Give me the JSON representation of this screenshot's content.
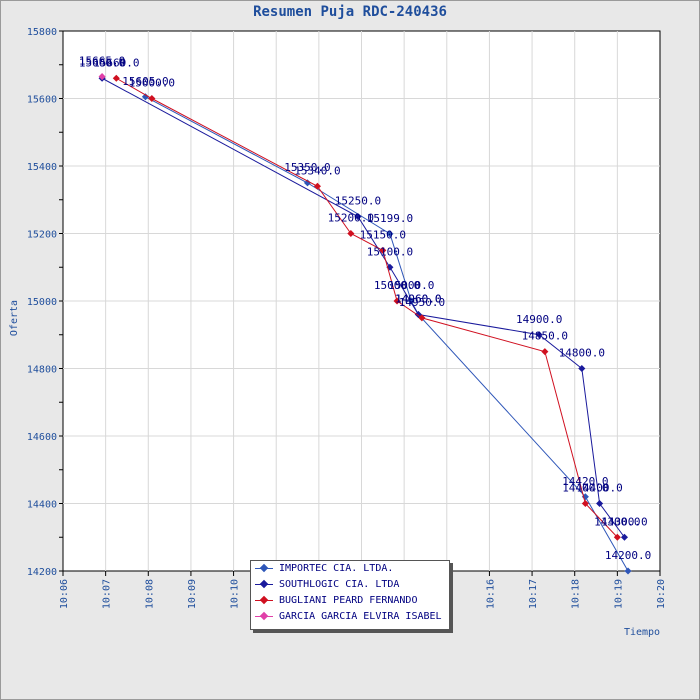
{
  "chart_data": {
    "type": "line",
    "title": "Resumen Puja RDC-240436",
    "xlabel": "Tiempo",
    "ylabel": "Oferta",
    "x_ticks": [
      "10:06",
      "10:07",
      "10:08",
      "10:09",
      "10:10",
      "10:11",
      "10:12",
      "10:13",
      "10:14",
      "10:15",
      "10:16",
      "10:17",
      "10:18",
      "10:19",
      "10:20"
    ],
    "xlim": [
      "10:06",
      "10:20"
    ],
    "ylim": [
      14200,
      15800
    ],
    "y_ticks": [
      14200,
      14400,
      14600,
      14800,
      15000,
      15200,
      15400,
      15600,
      15800
    ],
    "grid": true,
    "legend_position": "bottom-center",
    "series": [
      {
        "name": "IMPORTEC CIA. LTDA.",
        "color": "#2e56b8",
        "points": [
          {
            "x": "10:07:56",
            "y": 15605,
            "label": "15605.0"
          },
          {
            "x": "10:11:44",
            "y": 15350,
            "label": "15350.0"
          },
          {
            "x": "10:13:40",
            "y": 15199,
            "label": "15199.0"
          },
          {
            "x": "10:14:10",
            "y": 15000,
            "label": "15000.0"
          },
          {
            "x": "10:14:20",
            "y": 14960,
            "label": "14960.0"
          },
          {
            "x": "10:18:15",
            "y": 14420,
            "label": "14420.0"
          },
          {
            "x": "10:19:15",
            "y": 14200,
            "label": "14200.0"
          }
        ]
      },
      {
        "name": "SOUTHLOGIC CIA. LTDA",
        "color": "#1a1a9c",
        "points": [
          {
            "x": "10:06:55",
            "y": 15660,
            "label": "15660.0"
          },
          {
            "x": "10:12:55",
            "y": 15250,
            "label": "15250.0"
          },
          {
            "x": "10:13:40",
            "y": 15100,
            "label": "15100.0"
          },
          {
            "x": "10:14:20",
            "y": 14960,
            "label": "14960.0"
          },
          {
            "x": "10:17:10",
            "y": 14900,
            "label": "14900.0"
          },
          {
            "x": "10:18:10",
            "y": 14800,
            "label": "14800.0"
          },
          {
            "x": "10:18:35",
            "y": 14400,
            "label": "14400.0"
          },
          {
            "x": "10:19:10",
            "y": 14300,
            "label": "14300.0"
          }
        ]
      },
      {
        "name": "BUGLIANI PEARD FERNANDO",
        "color": "#d01020",
        "points": [
          {
            "x": "10:07:15",
            "y": 15660,
            "label": "15660.0"
          },
          {
            "x": "10:08:05",
            "y": 15600,
            "label": "15600.0"
          },
          {
            "x": "10:11:58",
            "y": 15340,
            "label": "15340.0"
          },
          {
            "x": "10:12:45",
            "y": 15200,
            "label": "15200.0"
          },
          {
            "x": "10:13:30",
            "y": 15150,
            "label": "15150.0"
          },
          {
            "x": "10:13:50",
            "y": 15000,
            "label": "15000.0"
          },
          {
            "x": "10:14:25",
            "y": 14950,
            "label": "14950.0"
          },
          {
            "x": "10:17:18",
            "y": 14850,
            "label": "14850.0"
          },
          {
            "x": "10:18:15",
            "y": 14400,
            "label": "14400.0"
          },
          {
            "x": "10:19:00",
            "y": 14300,
            "label": "14300.0"
          }
        ]
      },
      {
        "name": "GARCIA GARCIA ELVIRA ISABEL",
        "color": "#e040a8",
        "points": [
          {
            "x": "10:06:55",
            "y": 15665,
            "label": "15665.0"
          }
        ]
      }
    ]
  }
}
